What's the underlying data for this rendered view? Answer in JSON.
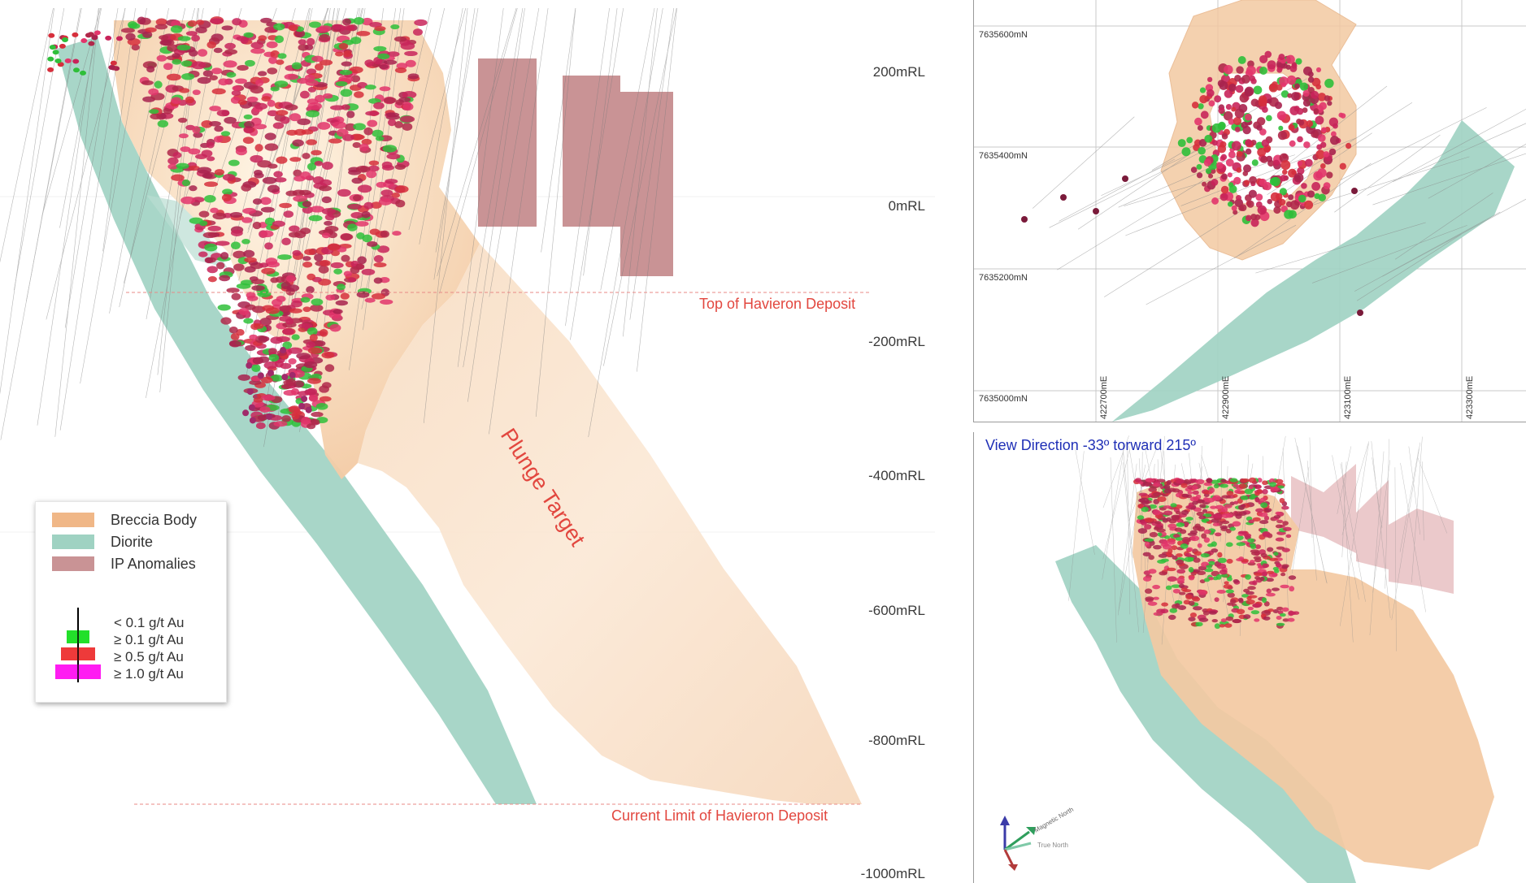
{
  "section": {
    "rl_labels": [
      "200mRL",
      "0mRL",
      "-200mRL",
      "-400mRL",
      "-600mRL",
      "-800mRL",
      "-1000mRL"
    ],
    "top_deposit_label": "Top of Havieron Deposit",
    "limit_deposit_label": "Current Limit of Havieron Deposit",
    "plunge_label": "Plunge Target"
  },
  "legend": {
    "units": [
      {
        "label": "Breccia Body",
        "color": "#f0b787"
      },
      {
        "label": "Diorite",
        "color": "#9fd2c2"
      },
      {
        "label": "IP Anomalies",
        "color": "#c99395"
      }
    ],
    "grades": [
      {
        "label": "< 0.1 g/t Au",
        "color": "#000000"
      },
      {
        "label": "≥ 0.1 g/t Au",
        "color": "#22e02a"
      },
      {
        "label": "≥ 0.5 g/t Au",
        "color": "#ee3a3a"
      },
      {
        "label": "≥ 1.0 g/t Au",
        "color": "#ff1cf2"
      }
    ]
  },
  "plan": {
    "northings": [
      "7635600mN",
      "7635400mN",
      "7635200mN",
      "7635000mN"
    ],
    "eastings": [
      "422700mE",
      "422900mE",
      "423100mE",
      "423300mE"
    ]
  },
  "oblique": {
    "view_direction": "View Direction -33º torward 215º",
    "arrow_magnetic": "Magnetic North",
    "arrow_true": "True North"
  }
}
